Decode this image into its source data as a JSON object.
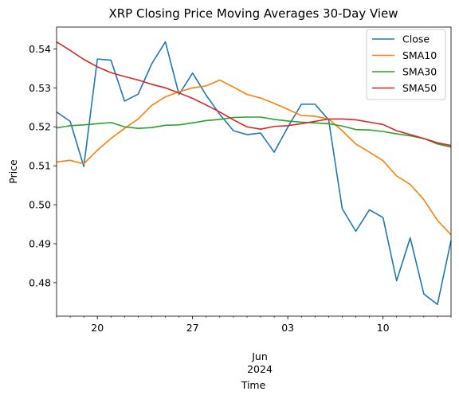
{
  "chart_data": {
    "type": "line",
    "title": "XRP Closing Price Moving Averages 30-Day View",
    "xlabel": "Time",
    "ylabel": "Price",
    "x": [
      "2024-05-17",
      "2024-05-18",
      "2024-05-19",
      "2024-05-20",
      "2024-05-21",
      "2024-05-22",
      "2024-05-23",
      "2024-05-24",
      "2024-05-25",
      "2024-05-26",
      "2024-05-27",
      "2024-05-28",
      "2024-05-29",
      "2024-05-30",
      "2024-05-31",
      "2024-06-01",
      "2024-06-02",
      "2024-06-03",
      "2024-06-04",
      "2024-06-05",
      "2024-06-06",
      "2024-06-07",
      "2024-06-08",
      "2024-06-09",
      "2024-06-10",
      "2024-06-11",
      "2024-06-12",
      "2024-06-13",
      "2024-06-14",
      "2024-06-15"
    ],
    "xlim": [
      "2024-05-17",
      "2024-06-15"
    ],
    "ylim": [
      0.4714,
      0.5456
    ],
    "xticks": [
      {
        "date": "2024-05-20",
        "label": "20"
      },
      {
        "date": "2024-05-27",
        "label": "27"
      },
      {
        "date": "2024-06-03",
        "label": "03"
      },
      {
        "date": "2024-06-10",
        "label": "10"
      }
    ],
    "x_secondary_label": {
      "month": "Jun",
      "year": "2024"
    },
    "yticks": [
      0.48,
      0.49,
      0.5,
      0.51,
      0.52,
      0.53,
      0.54
    ],
    "ytick_labels": [
      "0.48",
      "0.49",
      "0.50",
      "0.51",
      "0.52",
      "0.53",
      "0.54"
    ],
    "legend_position": "top-right",
    "grid": false,
    "series": [
      {
        "name": "Close",
        "color": "#1f77b4",
        "values": [
          0.5238,
          0.5214,
          0.5098,
          0.5374,
          0.5371,
          0.5266,
          0.5284,
          0.5362,
          0.5418,
          0.5283,
          0.5338,
          0.5281,
          0.5232,
          0.519,
          0.518,
          0.5184,
          0.5135,
          0.5199,
          0.5258,
          0.5258,
          0.5218,
          0.499,
          0.4932,
          0.4987,
          0.4967,
          0.4805,
          0.4915,
          0.4771,
          0.4744,
          0.4908
        ]
      },
      {
        "name": "SMA10",
        "color": "#ff7f0e",
        "values": [
          0.511,
          0.5114,
          0.5105,
          0.514,
          0.517,
          0.5196,
          0.522,
          0.5255,
          0.5277,
          0.529,
          0.53,
          0.5305,
          0.532,
          0.5302,
          0.5283,
          0.5274,
          0.526,
          0.5245,
          0.5229,
          0.5227,
          0.522,
          0.519,
          0.5156,
          0.5135,
          0.5113,
          0.5074,
          0.5052,
          0.5013,
          0.496,
          0.4923
        ]
      },
      {
        "name": "SMA30",
        "color": "#2ca02c",
        "values": [
          0.5197,
          0.5203,
          0.5205,
          0.5208,
          0.5211,
          0.52,
          0.5196,
          0.5198,
          0.5204,
          0.5205,
          0.521,
          0.5216,
          0.5219,
          0.5224,
          0.5225,
          0.5225,
          0.5219,
          0.5215,
          0.5212,
          0.521,
          0.5208,
          0.5202,
          0.5193,
          0.5192,
          0.5188,
          0.5182,
          0.5177,
          0.517,
          0.5156,
          0.5148
        ]
      },
      {
        "name": "SMA50",
        "color": "#d62728",
        "values": [
          0.5418,
          0.5396,
          0.5373,
          0.5354,
          0.5339,
          0.5329,
          0.532,
          0.5309,
          0.53,
          0.5287,
          0.5273,
          0.5256,
          0.5238,
          0.5218,
          0.52,
          0.5194,
          0.5201,
          0.5203,
          0.5208,
          0.5214,
          0.522,
          0.522,
          0.5218,
          0.5212,
          0.5206,
          0.519,
          0.518,
          0.517,
          0.5159,
          0.5152
        ]
      }
    ]
  }
}
